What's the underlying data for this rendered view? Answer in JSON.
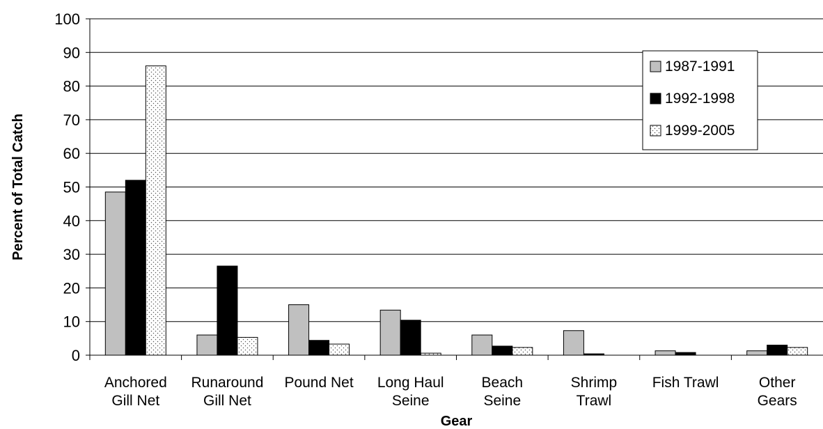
{
  "chart_data": {
    "type": "bar",
    "title": "",
    "xlabel": "Gear",
    "ylabel": "Percent of Total Catch",
    "ylim": [
      0,
      100
    ],
    "yticks": [
      0,
      10,
      20,
      30,
      40,
      50,
      60,
      70,
      80,
      90,
      100
    ],
    "grid": true,
    "legend_position": "top-right",
    "categories": [
      [
        "Anchored",
        "Gill Net"
      ],
      [
        "Runaround",
        "Gill Net"
      ],
      [
        "Pound Net"
      ],
      [
        "Long Haul",
        "Seine"
      ],
      [
        "Beach",
        "Seine"
      ],
      [
        "Shrimp",
        "Trawl"
      ],
      [
        "Fish Trawl"
      ],
      [
        "Other",
        "Gears"
      ]
    ],
    "series": [
      {
        "name": "1987-1991",
        "fill": "#c0c0c0",
        "pattern": "solid",
        "values": [
          48.5,
          6.0,
          15.0,
          13.4,
          6.0,
          7.3,
          1.3,
          1.3
        ]
      },
      {
        "name": "1992-1998",
        "fill": "#000000",
        "pattern": "solid",
        "values": [
          52.0,
          26.5,
          4.4,
          10.4,
          2.7,
          0.4,
          0.8,
          3.0
        ]
      },
      {
        "name": "1999-2005",
        "fill": "#ffffff",
        "pattern": "dotted",
        "values": [
          86.0,
          5.3,
          3.3,
          0.6,
          2.3,
          0.0,
          0.0,
          2.3
        ]
      }
    ]
  }
}
